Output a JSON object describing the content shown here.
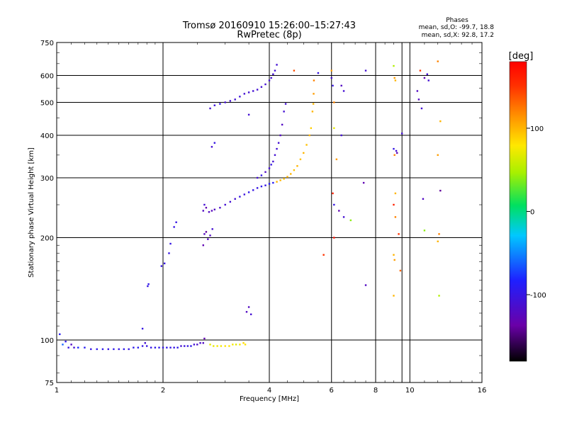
{
  "chart_data": {
    "type": "scatter",
    "title": "Tromsø 20160910 15:26:00–15:27:43",
    "subtitle": "RwPretec (8p)",
    "xlabel": "Frequency [MHz]",
    "ylabel": "Stationary phase Virtual Height [km]",
    "x_scale": "log",
    "y_scale": "log",
    "xlim": [
      1,
      16
    ],
    "ylim": [
      75,
      750
    ],
    "x_ticks": [
      1,
      2,
      4,
      6,
      8,
      10,
      16
    ],
    "y_ticks": [
      75,
      100,
      200,
      300,
      400,
      500,
      600,
      750
    ],
    "grid": true,
    "phases": {
      "heading": "Phases",
      "line_o": "mean, sd,O: -99.7, 18.8",
      "line_x": "mean, sd,X:  92.8, 17.2"
    },
    "colorbar": {
      "label": "[deg]",
      "range": [
        -180,
        180
      ],
      "ticks": [
        -100,
        0,
        100
      ],
      "colormap": "rainbow"
    },
    "color_key": "phase_deg",
    "series": [
      {
        "points": [
          [
            1.02,
            104,
            -90
          ],
          [
            1.04,
            97,
            -60
          ],
          [
            1.06,
            99,
            -95
          ],
          [
            1.08,
            95,
            -100
          ],
          [
            1.1,
            97,
            -120
          ],
          [
            1.12,
            95,
            -110
          ],
          [
            1.15,
            95,
            -80
          ],
          [
            1.2,
            95,
            -90
          ],
          [
            1.25,
            94,
            -100
          ],
          [
            1.3,
            94,
            -95
          ],
          [
            1.35,
            94,
            -95
          ],
          [
            1.4,
            94,
            -100
          ],
          [
            1.45,
            94,
            -95
          ],
          [
            1.5,
            94,
            -100
          ],
          [
            1.55,
            94,
            -95
          ],
          [
            1.6,
            94,
            -100
          ],
          [
            1.65,
            95,
            -95
          ],
          [
            1.7,
            95,
            -90
          ],
          [
            1.75,
            96,
            -100
          ],
          [
            1.78,
            98,
            -110
          ],
          [
            1.8,
            96,
            -100
          ],
          [
            1.85,
            95,
            -100
          ],
          [
            1.9,
            95,
            -95
          ],
          [
            1.95,
            95,
            -95
          ],
          [
            2.0,
            95,
            -100
          ],
          [
            2.05,
            95,
            -95
          ],
          [
            2.1,
            95,
            -100
          ],
          [
            2.15,
            95,
            -100
          ],
          [
            2.2,
            95,
            -95
          ],
          [
            2.25,
            96,
            -110
          ],
          [
            2.3,
            96,
            -105
          ],
          [
            2.35,
            96,
            -100
          ],
          [
            2.4,
            96,
            -95
          ],
          [
            2.45,
            97,
            -110
          ],
          [
            2.5,
            97,
            -115
          ],
          [
            2.55,
            98,
            -115
          ],
          [
            2.6,
            98,
            -120
          ],
          [
            2.62,
            101,
            -130
          ],
          [
            2.72,
            97,
            70
          ],
          [
            2.78,
            96,
            70
          ],
          [
            2.85,
            96,
            75
          ],
          [
            2.92,
            96,
            75
          ],
          [
            3.0,
            96,
            80
          ],
          [
            3.08,
            96,
            80
          ],
          [
            3.15,
            97,
            75
          ],
          [
            3.22,
            97,
            70
          ],
          [
            3.3,
            97,
            75
          ],
          [
            3.38,
            98,
            85
          ],
          [
            3.42,
            97,
            80
          ]
        ]
      },
      {
        "points": [
          [
            1.75,
            108,
            -100
          ],
          [
            1.81,
            144,
            -100
          ],
          [
            1.82,
            146,
            -95
          ],
          [
            1.98,
            165,
            -100
          ],
          [
            2.02,
            168,
            -100
          ],
          [
            2.08,
            180,
            -100
          ],
          [
            2.1,
            192,
            -100
          ],
          [
            2.15,
            215,
            -100
          ],
          [
            2.18,
            222,
            -100
          ],
          [
            2.6,
            190,
            -130
          ],
          [
            2.62,
            205,
            -120
          ],
          [
            2.65,
            208,
            -140
          ],
          [
            2.68,
            198,
            -120
          ],
          [
            2.72,
            203,
            -120
          ],
          [
            2.76,
            212,
            -110
          ],
          [
            3.45,
            121,
            -120
          ],
          [
            3.5,
            125,
            -120
          ],
          [
            3.55,
            119,
            -110
          ]
        ]
      },
      {
        "points": [
          [
            2.6,
            240,
            -120
          ],
          [
            2.62,
            250,
            -110
          ],
          [
            2.65,
            245,
            -130
          ],
          [
            2.7,
            238,
            -120
          ],
          [
            2.75,
            240,
            -125
          ],
          [
            2.8,
            242,
            -120
          ],
          [
            2.9,
            245,
            -115
          ],
          [
            3.0,
            250,
            -110
          ],
          [
            3.1,
            255,
            -110
          ],
          [
            3.2,
            260,
            -110
          ],
          [
            3.3,
            264,
            -100
          ],
          [
            3.4,
            268,
            -105
          ],
          [
            3.5,
            272,
            -95
          ],
          [
            3.6,
            276,
            -100
          ],
          [
            3.7,
            280,
            -100
          ],
          [
            3.8,
            283,
            -95
          ],
          [
            3.9,
            285,
            -100
          ],
          [
            4.0,
            288,
            -90
          ],
          [
            4.1,
            290,
            -90
          ],
          [
            4.2,
            292,
            100
          ],
          [
            4.3,
            295,
            100
          ],
          [
            4.4,
            298,
            95
          ],
          [
            4.5,
            302,
            100
          ],
          [
            4.6,
            308,
            100
          ],
          [
            4.7,
            316,
            95
          ],
          [
            4.8,
            325,
            100
          ],
          [
            4.9,
            340,
            95
          ],
          [
            5.0,
            355,
            100
          ],
          [
            5.1,
            375,
            95
          ],
          [
            5.2,
            400,
            100
          ],
          [
            5.25,
            420,
            90
          ],
          [
            5.3,
            470,
            100
          ],
          [
            5.33,
            495,
            100
          ],
          [
            5.34,
            530,
            110
          ],
          [
            5.35,
            580,
            120
          ]
        ]
      },
      {
        "points": [
          [
            3.7,
            300,
            -110
          ],
          [
            3.8,
            305,
            -100
          ],
          [
            3.9,
            312,
            -120
          ],
          [
            4.0,
            320,
            -110
          ],
          [
            4.05,
            328,
            -100
          ],
          [
            4.1,
            335,
            -110
          ],
          [
            4.15,
            350,
            -110
          ],
          [
            4.2,
            365,
            -110
          ],
          [
            4.25,
            380,
            -110
          ],
          [
            4.3,
            400,
            -120
          ],
          [
            4.35,
            430,
            -120
          ],
          [
            4.4,
            470,
            -110
          ],
          [
            4.45,
            495,
            -110
          ]
        ]
      },
      {
        "points": [
          [
            2.72,
            480,
            -110
          ],
          [
            2.8,
            490,
            -105
          ],
          [
            2.9,
            495,
            -100
          ],
          [
            3.0,
            500,
            -110
          ],
          [
            3.1,
            505,
            -110
          ],
          [
            3.2,
            510,
            -110
          ],
          [
            3.3,
            520,
            -105
          ],
          [
            3.4,
            530,
            -110
          ],
          [
            3.5,
            535,
            -110
          ],
          [
            3.6,
            540,
            -110
          ],
          [
            3.7,
            545,
            -110
          ],
          [
            3.8,
            555,
            -110
          ],
          [
            3.9,
            565,
            -110
          ],
          [
            4.0,
            580,
            -110
          ],
          [
            4.05,
            590,
            -110
          ],
          [
            4.1,
            605,
            -110
          ],
          [
            4.15,
            620,
            -110
          ],
          [
            4.2,
            645,
            -110
          ],
          [
            2.75,
            370,
            -110
          ],
          [
            2.8,
            380,
            -100
          ],
          [
            3.5,
            460,
            -110
          ]
        ]
      },
      {
        "points": [
          [
            4.7,
            620,
            140
          ],
          [
            5.5,
            610,
            -100
          ],
          [
            6.0,
            620,
            110
          ],
          [
            6.0,
            590,
            -110
          ],
          [
            6.05,
            560,
            -100
          ],
          [
            6.1,
            500,
            120
          ],
          [
            6.1,
            420,
            70
          ],
          [
            6.2,
            340,
            110
          ],
          [
            6.05,
            270,
            160
          ],
          [
            6.1,
            250,
            -100
          ],
          [
            6.3,
            240,
            -130
          ],
          [
            6.5,
            230,
            -110
          ],
          [
            6.4,
            560,
            -120
          ],
          [
            6.5,
            540,
            -110
          ],
          [
            6.4,
            400,
            -110
          ],
          [
            7.5,
            620,
            -110
          ],
          [
            7.4,
            290,
            -130
          ],
          [
            7.5,
            145,
            -120
          ],
          [
            5.7,
            178,
            150
          ],
          [
            6.8,
            225,
            40
          ],
          [
            6.1,
            200,
            170
          ],
          [
            9.0,
            640,
            50
          ],
          [
            9.05,
            590,
            110
          ],
          [
            9.1,
            580,
            100
          ],
          [
            9.0,
            365,
            -100
          ],
          [
            9.15,
            360,
            -110
          ],
          [
            9.05,
            350,
            120
          ],
          [
            9.2,
            355,
            -130
          ],
          [
            9.1,
            270,
            100
          ],
          [
            9.0,
            250,
            160
          ],
          [
            9.1,
            230,
            120
          ],
          [
            9.3,
            205,
            150
          ],
          [
            9.0,
            178,
            100
          ],
          [
            9.05,
            172,
            110
          ],
          [
            9.4,
            160,
            130
          ],
          [
            9.0,
            135,
            100
          ],
          [
            9.5,
            405,
            -110
          ],
          [
            10.5,
            540,
            -120
          ],
          [
            10.6,
            510,
            -120
          ],
          [
            10.8,
            480,
            -110
          ],
          [
            10.7,
            620,
            150
          ],
          [
            11.0,
            590,
            -130
          ],
          [
            11.2,
            605,
            -110
          ],
          [
            11.3,
            580,
            -110
          ],
          [
            10.9,
            260,
            -120
          ],
          [
            11.0,
            210,
            40
          ],
          [
            12.0,
            660,
            120
          ],
          [
            12.2,
            440,
            100
          ],
          [
            12.0,
            350,
            110
          ],
          [
            12.2,
            275,
            -140
          ],
          [
            12.1,
            205,
            120
          ],
          [
            12.0,
            195,
            100
          ],
          [
            12.1,
            135,
            50
          ]
        ]
      }
    ]
  }
}
